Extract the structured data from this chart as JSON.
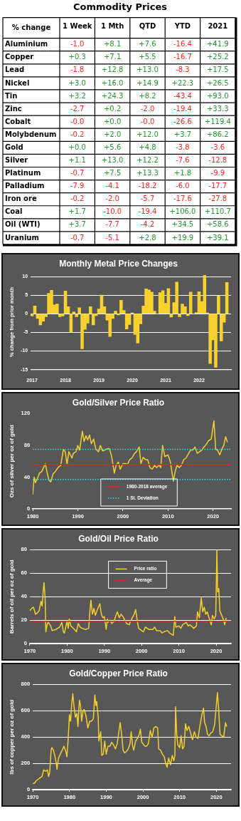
{
  "chart_data": [
    {
      "type": "heatmap",
      "title": "Commodity Prices",
      "ylabel": "% change",
      "categories": [
        "1 Week",
        "1 Mth",
        "QTD",
        "YTD",
        "2021"
      ],
      "y_categories": [
        "Aluminium",
        "Copper",
        "Lead",
        "Nickel",
        "Tin",
        "Zinc",
        "Cobalt",
        "Molybdenum",
        "Gold",
        "Silver",
        "Platinum",
        "Palladium",
        "Iron ore",
        "Coal",
        "Oil (WTI)",
        "Uranium"
      ],
      "cells": [
        [
          -1.0,
          8.1,
          7.6,
          -16.4,
          41.9
        ],
        [
          0.3,
          7.1,
          5.5,
          -16.7,
          25.2
        ],
        [
          -1.8,
          12.8,
          13.0,
          -8.3,
          17.5
        ],
        [
          3.0,
          16.0,
          14.9,
          22.3,
          26.5
        ],
        [
          3.2,
          24.3,
          8.2,
          -43.4,
          93.0
        ],
        [
          -2.7,
          0.2,
          -2.0,
          -19.4,
          33.3
        ],
        [
          -0.0,
          0.0,
          -0.0,
          -26.6,
          119.4
        ],
        [
          -0.2,
          2.0,
          12.0,
          3.7,
          86.2
        ],
        [
          0.0,
          5.6,
          4.8,
          -3.8,
          -3.6
        ],
        [
          1.1,
          13.0,
          12.2,
          -7.6,
          -12.8
        ],
        [
          -0.7,
          7.5,
          13.3,
          1.8,
          -9.9
        ],
        [
          -7.9,
          -4.1,
          -18.2,
          -6.0,
          -17.7
        ],
        [
          -0.2,
          -2.0,
          -5.7,
          -17.6,
          -27.8
        ],
        [
          1.7,
          -10.0,
          -19.4,
          106.0,
          110.7
        ],
        [
          3.7,
          -7.7,
          -4.2,
          34.5,
          58.6
        ],
        [
          -0.7,
          -5.1,
          2.8,
          19.9,
          39.1
        ]
      ],
      "cell_labels": [
        [
          "-1.0",
          "+8.1",
          "+7.6",
          "-16.4",
          "+41.9"
        ],
        [
          "+0.3",
          "+7.1",
          "+5.5",
          "-16.7",
          "+25.2"
        ],
        [
          "-1.8",
          "+12.8",
          "+13.0",
          "-8.3",
          "+17.5"
        ],
        [
          "+3.0",
          "+16.0",
          "+14.9",
          "+22.3",
          "+26.5"
        ],
        [
          "+3.2",
          "+24.3",
          "+8.2",
          "-43.4",
          "+93.0"
        ],
        [
          "-2.7",
          "+0.2",
          "-2.0",
          "-19.4",
          "+33.3"
        ],
        [
          "-0.0",
          "+0.0",
          "-0.0",
          "-26.6",
          "+119.4"
        ],
        [
          "-0.2",
          "+2.0",
          "+12.0",
          "+3.7",
          "+86.2"
        ],
        [
          "+0.0",
          "+5.6",
          "+4.8",
          "-3.8",
          "-3.6"
        ],
        [
          "+1.1",
          "+13.0",
          "+12.2",
          "-7.6",
          "-12.8"
        ],
        [
          "-0.7",
          "+7.5",
          "+13.3",
          "+1.8",
          "-9.9"
        ],
        [
          "-7.9",
          "-4.1",
          "-18.2",
          "-6.0",
          "-17.7"
        ],
        [
          "-0.2",
          "-2.0",
          "-5.7",
          "-17.6",
          "-27.8"
        ],
        [
          "+1.7",
          "-10.0",
          "-19.4",
          "+106.0",
          "+110.7"
        ],
        [
          "+3.7",
          "-7.7",
          "-4.2",
          "+34.5",
          "+58.6"
        ],
        [
          "-0.7",
          "-5.1",
          "+2.8",
          "+19.9",
          "+39.1"
        ]
      ],
      "data_labels": true
    },
    {
      "type": "bar",
      "title": "Monthly Metal Price Changes",
      "ylabel": "% change from prior month",
      "categories": [
        "2017",
        null,
        null,
        null,
        null,
        null,
        null,
        null,
        null,
        null,
        null,
        null,
        "2018",
        null,
        null,
        null,
        null,
        null,
        null,
        null,
        null,
        null,
        null,
        null,
        "2019",
        null,
        null,
        null,
        null,
        null,
        null,
        null,
        null,
        null,
        null,
        null,
        "2020",
        null,
        null,
        null,
        null,
        null,
        null,
        null,
        null,
        null,
        null,
        null,
        "2021",
        null,
        null,
        null,
        null,
        null,
        null,
        null,
        null,
        null,
        null,
        null,
        "2022",
        null,
        null,
        null,
        null,
        null,
        null,
        null,
        null,
        null,
        null,
        null
      ],
      "values": [
        -0.6,
        2.1,
        -1.3,
        -3.0,
        -2.0,
        -0.8,
        5.5,
        6.3,
        2.4,
        2.6,
        -0.8,
        -0.6,
        6.1,
        1.9,
        -4.9,
        0.5,
        -0.8,
        1.6,
        -9.4,
        -4.2,
        -2.5,
        1.9,
        -3.0,
        -0.5,
        1.3,
        5.0,
        1.9,
        -1.7,
        -6.1,
        -1.3,
        0.7,
        -0.3,
        3.6,
        0.9,
        -4.1,
        -2.9,
        0.2,
        -5.6,
        -7.9,
        -2.7,
        2.1,
        6.7,
        6.4,
        5.8,
        0.7,
        0,
        5.7,
        6.2,
        2.8,
        6.8,
        -0.9,
        3.0,
        8.5,
        -0.8,
        2.6,
        1.9,
        -0.5,
        5.8,
        0,
        0.3,
        5.9,
        3.3,
        10.3,
        0.2,
        -13.4,
        -7.0,
        -14.4,
        4.8,
        -7.3,
        -2.3,
        8.4,
        null
      ],
      "color": "#f7d12e",
      "ylim": [
        -15,
        10.5
      ],
      "yticks": [
        -15,
        -10,
        -5,
        0,
        5,
        10
      ],
      "grid": "y"
    },
    {
      "type": "line",
      "title": "Gold/Silver Price Ratio",
      "ylabel": "Ozs of silver per oz of gold",
      "x": [
        1980,
        1980.3,
        1980.6,
        1981,
        1981.5,
        1982,
        1982.4,
        1982.8,
        1983.2,
        1983.6,
        1984,
        1984.5,
        1985,
        1985.6,
        1986.2,
        1986.8,
        1987.2,
        1987.6,
        1988,
        1988.7,
        1989,
        1989.6,
        1990,
        1990.4,
        1991,
        1991.4,
        1991.8,
        1992.2,
        1992.6,
        1993,
        1993.5,
        1994,
        1994.6,
        1995,
        1995.5,
        1996,
        1996.6,
        1997,
        1997.5,
        1998.1,
        1998.5,
        1999,
        1999.4,
        2000,
        2000.6,
        2001,
        2001.5,
        2002,
        2002.6,
        2003,
        2003.6,
        2004,
        2004.5,
        2005,
        2005.5,
        2006,
        2006.5,
        2007,
        2007.5,
        2008,
        2008.4,
        2008.8,
        2009.3,
        2010,
        2010.5,
        2011.2,
        2011.6,
        2012,
        2012.5,
        2013,
        2013.5,
        2014,
        2014.6,
        2015,
        2015.5,
        2016,
        2016.5,
        2017,
        2017.5,
        2018,
        2018.6,
        2019,
        2019.6,
        2020.2,
        2020.6,
        2021,
        2021.5,
        2022,
        2022.4,
        2022.8,
        2023.2
      ],
      "series": [
        {
          "color": "#f4cf2c",
          "values": [
            18,
            40,
            33,
            38,
            45,
            47,
            52,
            57,
            45,
            36,
            34,
            44,
            47,
            52,
            55,
            75,
            72,
            56,
            72,
            64,
            70,
            72,
            80,
            74,
            98,
            85,
            92,
            87,
            93,
            82,
            88,
            75,
            72,
            80,
            73,
            74,
            76,
            76,
            66,
            45,
            55,
            59,
            50,
            57,
            57,
            56,
            62,
            64,
            70,
            72,
            78,
            57,
            65,
            62,
            62,
            52,
            50,
            55,
            52,
            55,
            52,
            80,
            66,
            68,
            60,
            35,
            47,
            55,
            52,
            55,
            62,
            64,
            70,
            74,
            74,
            78,
            70,
            72,
            74,
            78,
            82,
            86,
            88,
            111,
            75,
            74,
            68,
            76,
            80,
            91,
            84
          ]
        }
      ],
      "xlim": [
        1980,
        2024
      ],
      "xticks": [
        1980,
        1990,
        2000,
        2010,
        2020
      ],
      "ylim": [
        0,
        120
      ],
      "yticks": [
        0,
        40,
        80,
        120
      ],
      "legend": "bottom",
      "ref_lines": [
        {
          "axis": "y",
          "value": 56,
          "label": "1980-2018 average",
          "color": "#ff1a1a",
          "line_style": "solid"
        },
        {
          "axis": "y",
          "value": 75,
          "label": "1 St. Deviation",
          "color": "#33e0e8",
          "line_style": "dotted"
        },
        {
          "axis": "y",
          "value": 37,
          "color": "#33e0e8",
          "line_style": "dotted"
        }
      ]
    },
    {
      "type": "line",
      "title": "Gold/Oil Price Ratio",
      "ylabel": "Barrels of oil per oz of gold",
      "x": [
        1970,
        1970.5,
        1971,
        1971.5,
        1972,
        1972.5,
        1973,
        1973.3,
        1973.6,
        1973.8,
        1974.1,
        1974.3,
        1974.7,
        1975,
        1975.6,
        1976,
        1977,
        1978,
        1978.6,
        1979,
        1979.3,
        1979.7,
        1980,
        1980.3,
        1980.6,
        1981,
        1982,
        1982.5,
        1983,
        1983.5,
        1984,
        1985,
        1985.8,
        1986.1,
        1986.4,
        1986.8,
        1987.2,
        1987.6,
        1988,
        1988.4,
        1988.8,
        1989.2,
        1989.6,
        1990,
        1990.5,
        1990.8,
        1991,
        1991.5,
        1992,
        1992.6,
        1993,
        1993.5,
        1994,
        1994.5,
        1995,
        1995.5,
        1996,
        1996.7,
        1997,
        1997.5,
        1998,
        1998.4,
        1998.8,
        1999.2,
        2000,
        2000.5,
        2001,
        2002,
        2003,
        2003.5,
        2004,
        2005,
        2005.5,
        2006,
        2007,
        2007.5,
        2008,
        2008.5,
        2008.9,
        2009.2,
        2010,
        2010.5,
        2011,
        2012,
        2012.5,
        2013,
        2014,
        2014.7,
        2015,
        2015.5,
        2016,
        2016.4,
        2016.8,
        2017.2,
        2017.6,
        2018,
        2018.7,
        2019,
        2019.5,
        2019.9,
        2020.2,
        2020.4,
        2020.7,
        2021,
        2021.5,
        2022,
        2022.3,
        2022.7
      ],
      "series": [
        {
          "name": "Price ratio",
          "color": "#f4cf2c",
          "values": [
            28,
            30,
            31,
            25,
            26,
            28,
            36,
            32,
            45,
            52,
            40,
            10,
            17,
            18,
            15,
            11,
            12,
            14,
            18,
            10,
            9,
            15,
            19,
            13,
            21,
            15,
            12,
            10,
            17,
            14,
            13,
            12,
            13,
            27,
            37,
            25,
            30,
            24,
            28,
            31,
            34,
            25,
            22,
            23,
            12,
            21,
            18,
            20,
            17,
            19,
            23,
            27,
            22,
            25,
            23,
            20,
            17,
            16,
            19,
            22,
            25,
            29,
            20,
            13,
            11,
            10,
            14,
            12,
            12,
            14,
            11,
            11,
            9,
            10,
            11,
            9,
            8,
            7,
            23,
            14,
            15,
            13,
            16,
            18,
            15,
            16,
            13,
            15,
            27,
            22,
            39,
            27,
            31,
            25,
            27,
            23,
            16,
            24,
            21,
            24,
            80,
            44,
            47,
            28,
            24,
            20,
            16,
            22
          ]
        }
      ],
      "xlim": [
        1970,
        2024
      ],
      "xticks": [
        1970,
        1980,
        1990,
        2000,
        2010,
        2020
      ],
      "ylim": [
        0,
        80
      ],
      "yticks": [
        0,
        20,
        40,
        60,
        80
      ],
      "grid": "y",
      "legend": "top",
      "ref_lines": [
        {
          "axis": "y",
          "value": 19,
          "label": "Average",
          "color": "#ff1a1a",
          "line_style": "solid"
        }
      ]
    },
    {
      "type": "line",
      "title": "Gold/Copper Price Ratio",
      "ylabel": "lbs of copper per oz of gold",
      "x": [
        1970,
        1970.5,
        1971,
        1971.5,
        1972,
        1972.5,
        1973,
        1973.5,
        1974,
        1974.3,
        1974.6,
        1975,
        1975.2,
        1975.6,
        1976,
        1976.4,
        1976.6,
        1977,
        1977.5,
        1978,
        1978.5,
        1979,
        1979.3,
        1979.6,
        1980,
        1980.3,
        1980.6,
        1980.9,
        1981.2,
        1981.6,
        1982,
        1982.3,
        1982.7,
        1983,
        1983.3,
        1983.7,
        1984,
        1984.5,
        1985,
        1985.5,
        1986,
        1986.5,
        1986.9,
        1987.2,
        1987.4,
        1987.8,
        1988,
        1988.5,
        1988.8,
        1989.2,
        1989.6,
        1990,
        1990.5,
        1991,
        1991.5,
        1992,
        1992.5,
        1993,
        1993.5,
        1993.8,
        1994.2,
        1994.6,
        1995,
        1995.5,
        1996,
        1996.5,
        1996.8,
        1997.2,
        1997.5,
        1998,
        1998.5,
        1999,
        1999.3,
        1999.7,
        2000,
        2000.5,
        2001,
        2001.5,
        2002,
        2002.5,
        2003,
        2003.5,
        2004,
        2004.3,
        2004.8,
        2005.3,
        2005.8,
        2006.2,
        2006.6,
        2007,
        2007.5,
        2008,
        2008.4,
        2008.7,
        2008.9,
        2009.2,
        2009.5,
        2010,
        2010.4,
        2010.8,
        2011.2,
        2011.6,
        2012,
        2012.5,
        2013,
        2013.5,
        2014,
        2014.5,
        2015,
        2015.5,
        2016,
        2016.5,
        2016.8,
        2017.2,
        2017.6,
        2018,
        2018.5,
        2019,
        2019.5,
        2019.8,
        2020.3,
        2020.6,
        2021,
        2021.5,
        2022,
        2022.5,
        2022.8
      ],
      "series": [
        {
          "color": "#f4cf2c",
          "values": [
            45,
            50,
            70,
            80,
            90,
            100,
            150,
            140,
            150,
            100,
            130,
            300,
            320,
            300,
            260,
            200,
            155,
            240,
            270,
            300,
            330,
            290,
            250,
            370,
            570,
            520,
            650,
            730,
            640,
            550,
            580,
            480,
            680,
            640,
            520,
            600,
            610,
            560,
            470,
            520,
            520,
            540,
            720,
            640,
            670,
            560,
            370,
            440,
            260,
            270,
            370,
            270,
            330,
            330,
            360,
            340,
            310,
            350,
            450,
            510,
            420,
            300,
            280,
            290,
            310,
            350,
            440,
            330,
            300,
            370,
            390,
            420,
            460,
            360,
            350,
            330,
            330,
            350,
            450,
            400,
            470,
            480,
            470,
            310,
            300,
            270,
            250,
            200,
            170,
            240,
            190,
            260,
            220,
            260,
            630,
            420,
            340,
            320,
            410,
            310,
            330,
            500,
            450,
            480,
            430,
            380,
            440,
            400,
            390,
            480,
            560,
            620,
            510,
            480,
            420,
            410,
            430,
            440,
            490,
            580,
            740,
            620,
            420,
            410,
            400,
            510,
            480
          ]
        }
      ],
      "xlim": [
        1970,
        2024
      ],
      "xticks": [
        1970,
        1980,
        1990,
        2000,
        2010,
        2020
      ],
      "ylim": [
        0,
        800
      ],
      "yticks": [
        0,
        200,
        400,
        600,
        800
      ],
      "grid": "y"
    }
  ]
}
